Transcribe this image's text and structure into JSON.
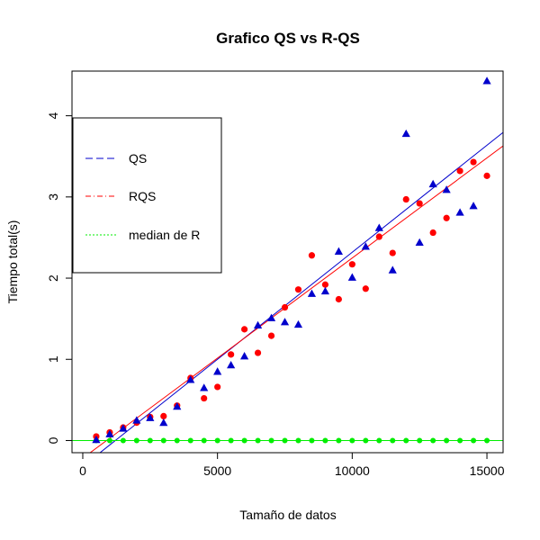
{
  "chart_data": {
    "type": "scatter",
    "title": "Grafico QS vs R-QS",
    "xlabel": "Tamaño de datos",
    "ylabel": "Tiempo total(s)",
    "xlim": [
      -400,
      15600
    ],
    "ylim": [
      -0.15,
      4.55
    ],
    "xticks": [
      0,
      5000,
      10000,
      15000
    ],
    "xtick_labels": [
      "0",
      "5000",
      "10000",
      "15000"
    ],
    "yticks": [
      0,
      1,
      2,
      3,
      4
    ],
    "ytick_labels": [
      "0",
      "1",
      "2",
      "3",
      "4"
    ],
    "grid": false,
    "legend_position": "top-left",
    "series": [
      {
        "name": "QS",
        "color": "#0000cc",
        "marker": "triangle",
        "line_style": "dashed",
        "x": [
          500,
          1000,
          1500,
          2000,
          2500,
          3000,
          3500,
          4000,
          4500,
          5000,
          5500,
          6000,
          6500,
          7000,
          7500,
          8000,
          8500,
          9000,
          9500,
          10000,
          10500,
          11000,
          11500,
          12000,
          12500,
          13000,
          13500,
          14000,
          14500,
          15000
        ],
        "y": [
          0.01,
          0.08,
          0.15,
          0.25,
          0.28,
          0.22,
          0.42,
          0.75,
          0.65,
          0.85,
          0.93,
          1.04,
          1.42,
          1.51,
          1.46,
          1.43,
          1.81,
          1.84,
          2.33,
          2.01,
          2.39,
          2.62,
          2.1,
          3.78,
          2.44,
          3.16,
          3.09,
          2.81,
          2.89,
          4.43
        ],
        "fit": {
          "slope": 0.0002637,
          "intercept": -0.3185
        }
      },
      {
        "name": "RQS",
        "color": "#ff0000",
        "marker": "circle",
        "line_style": "dash-dot",
        "x": [
          500,
          1000,
          1500,
          2000,
          2500,
          3000,
          3500,
          4000,
          4500,
          5000,
          5500,
          6000,
          6500,
          7000,
          7500,
          8000,
          8500,
          9000,
          9500,
          10000,
          10500,
          11000,
          11500,
          12000,
          12500,
          13000,
          13500,
          14000,
          14500,
          15000
        ],
        "y": [
          0.05,
          0.1,
          0.16,
          0.22,
          0.29,
          0.3,
          0.43,
          0.77,
          0.52,
          0.66,
          1.06,
          1.37,
          1.08,
          1.29,
          1.64,
          1.86,
          2.28,
          1.92,
          1.74,
          2.17,
          1.87,
          2.51,
          2.31,
          2.97,
          2.92,
          2.56,
          2.74,
          3.32,
          3.43,
          3.26
        ],
        "fit": {
          "slope": 0.0002465,
          "intercept": -0.2174
        }
      },
      {
        "name": "median de R",
        "color": "#00ee00",
        "marker": "circle",
        "line_style": "dotted",
        "x": [
          500,
          1000,
          1500,
          2000,
          2500,
          3000,
          3500,
          4000,
          4500,
          5000,
          5500,
          6000,
          6500,
          7000,
          7500,
          8000,
          8500,
          9000,
          9500,
          10000,
          10500,
          11000,
          11500,
          12000,
          12500,
          13000,
          13500,
          14000,
          14500,
          15000
        ],
        "y": [
          0,
          0,
          0,
          0,
          0,
          0,
          0,
          0,
          0,
          0,
          0,
          0,
          0,
          0,
          0,
          0,
          0,
          0,
          0,
          0,
          0,
          0,
          0,
          0,
          0,
          0,
          0,
          0,
          0,
          0
        ],
        "fit": {
          "slope": 0,
          "intercept": 0
        }
      }
    ]
  }
}
